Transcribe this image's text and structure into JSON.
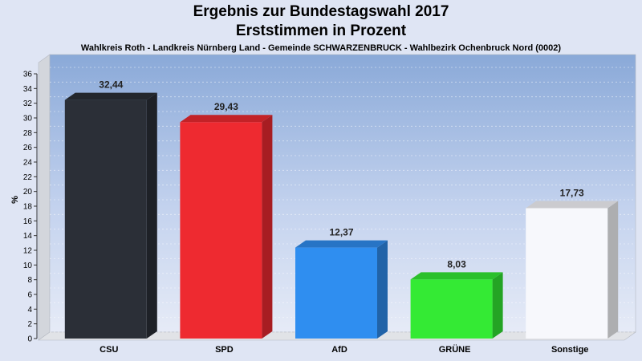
{
  "chart_data": {
    "type": "bar",
    "title": "Ergebnis zur Bundestagswahl 2017",
    "subtitle_line": "Erststimmen in Prozent",
    "subtitle": "Wahlkreis Roth - Landkreis Nürnberg Land - Gemeinde SCHWARZENBRUCK - Wahlbezirk Ochenbruck Nord (0002)",
    "ylabel": "%",
    "xlabel": "",
    "ylim": [
      0,
      36
    ],
    "yticks": [
      0,
      2,
      4,
      6,
      8,
      10,
      12,
      14,
      16,
      18,
      20,
      22,
      24,
      26,
      28,
      30,
      32,
      34,
      36
    ],
    "categories": [
      "CSU",
      "SPD",
      "AfD",
      "GRÜNE",
      "Sonstige"
    ],
    "values": [
      32.44,
      29.43,
      12.37,
      8.03,
      17.73
    ],
    "value_labels": [
      "32,44",
      "29,43",
      "12,37",
      "8,03",
      "17,73"
    ],
    "colors": [
      "#2b2f37",
      "#ee2a30",
      "#2f8ef0",
      "#34ea34",
      "#f7f8fc"
    ],
    "grid": true,
    "legend": "none"
  }
}
